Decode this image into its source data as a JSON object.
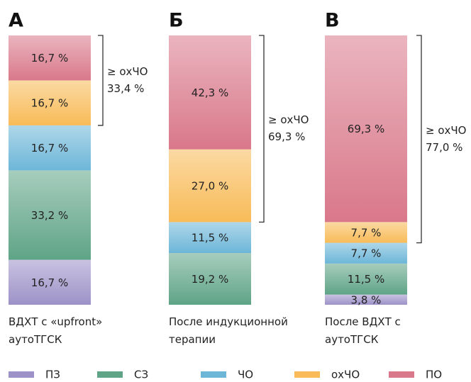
{
  "chart_data": {
    "type": "stacked_bar",
    "panel_labels": [
      "А",
      "Б",
      "В"
    ],
    "categories": [
      "ВДХТ с «upfront» аутоТГСК",
      "После индукционной терапии",
      "После ВДХТ с аутоТГСК"
    ],
    "ylim": [
      0,
      100
    ],
    "series": [
      {
        "name": "ПЗ",
        "color": "#9d92c8",
        "values": [
          16.7,
          null,
          3.8
        ],
        "value_labels": [
          "16,7 %",
          null,
          "3,8 %"
        ]
      },
      {
        "name": "СЗ",
        "color": "#5fa487",
        "values": [
          33.2,
          19.2,
          11.5
        ],
        "value_labels": [
          "33,2 %",
          "19,2 %",
          "11,5 %"
        ]
      },
      {
        "name": "ЧО",
        "color": "#6db6d8",
        "values": [
          16.7,
          11.5,
          7.7
        ],
        "value_labels": [
          "16,7 %",
          "11,5 %",
          "7,7 %"
        ]
      },
      {
        "name": "охЧО",
        "color": "#f8bb58",
        "values": [
          16.7,
          27.0,
          7.7
        ],
        "value_labels": [
          "16,7 %",
          "27,0 %",
          "7,7 %"
        ]
      },
      {
        "name": "ПО",
        "color": "#d9788a",
        "values": [
          16.7,
          42.3,
          69.3
        ],
        "value_labels": [
          "16,7 %",
          "42,3 %",
          "69,3 %"
        ]
      }
    ],
    "annotations": [
      {
        "label": "≥ охЧО",
        "value": 33.4,
        "value_label": "33,4 %"
      },
      {
        "label": "≥ охЧО",
        "value": 69.3,
        "value_label": "69,3 %"
      },
      {
        "label": "≥ охЧО",
        "value": 77.0,
        "value_label": "77,0 %"
      }
    ]
  }
}
